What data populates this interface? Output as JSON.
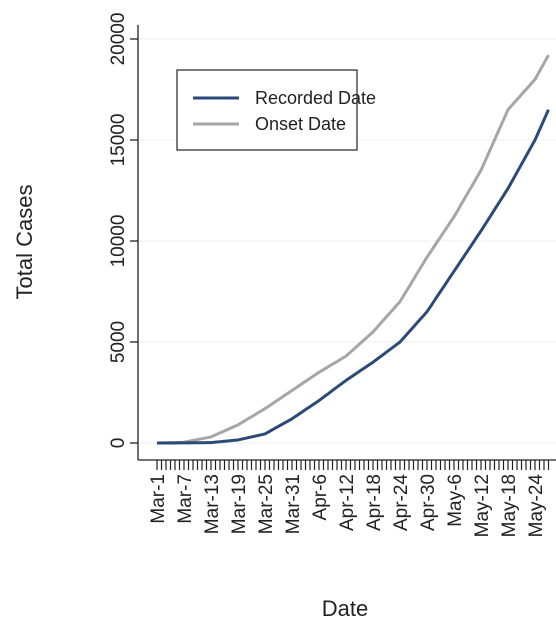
{
  "chart_data": {
    "type": "line",
    "xlabel": "Date",
    "ylabel": "Total Cases",
    "categories": [
      "Mar-1",
      null,
      null,
      null,
      null,
      null,
      "Mar-7",
      null,
      null,
      null,
      null,
      null,
      "Mar-13",
      null,
      null,
      null,
      null,
      null,
      "Mar-19",
      null,
      null,
      null,
      null,
      null,
      "Mar-25",
      null,
      null,
      null,
      null,
      null,
      "Mar-31",
      null,
      null,
      null,
      null,
      null,
      "Apr-6",
      null,
      null,
      null,
      null,
      null,
      "Apr-12",
      null,
      null,
      null,
      null,
      null,
      "Apr-18",
      null,
      null,
      null,
      null,
      null,
      "Apr-24",
      null,
      null,
      null,
      null,
      null,
      "Apr-30",
      null,
      null,
      null,
      null,
      null,
      "May-6",
      null,
      null,
      null,
      null,
      null,
      "May-12",
      null,
      null,
      null,
      null,
      null,
      "May-18",
      null,
      null,
      null,
      null,
      null,
      "May-24",
      null,
      null,
      null
    ],
    "series": [
      {
        "name": "Recorded Date",
        "color": "#2b4a78",
        "values": [
          0,
          1,
          2,
          2,
          3,
          4,
          5,
          8,
          10,
          12,
          15,
          18,
          20,
          42,
          63,
          85,
          107,
          128,
          150,
          200,
          250,
          300,
          350,
          400,
          450,
          575,
          700,
          825,
          950,
          1075,
          1200,
          1350,
          1500,
          1650,
          1800,
          1950,
          2100,
          2270,
          2430,
          2600,
          2770,
          2930,
          3100,
          3250,
          3400,
          3550,
          3700,
          3850,
          4000,
          4170,
          4330,
          4500,
          4670,
          4830,
          5000,
          5250,
          5500,
          5750,
          6000,
          6250,
          6500,
          6830,
          7170,
          7500,
          7830,
          8170,
          8500,
          8830,
          9170,
          9500,
          9830,
          10170,
          10500,
          10850,
          11200,
          11550,
          11900,
          12250,
          12600,
          13000,
          13400,
          13800,
          14200,
          14600,
          15000,
          15500,
          16000,
          16500
        ]
      },
      {
        "name": "Onset Date",
        "color": "#a6a6a6",
        "values": [
          0,
          7,
          13,
          20,
          27,
          33,
          40,
          83,
          127,
          170,
          213,
          257,
          300,
          400,
          500,
          600,
          700,
          800,
          900,
          1030,
          1170,
          1300,
          1430,
          1570,
          1700,
          1850,
          2000,
          2150,
          2300,
          2450,
          2600,
          2750,
          2900,
          3050,
          3200,
          3350,
          3500,
          3630,
          3770,
          3900,
          4030,
          4170,
          4300,
          4500,
          4700,
          4900,
          5100,
          5300,
          5500,
          5750,
          6000,
          6250,
          6500,
          6750,
          7000,
          7370,
          7730,
          8100,
          8470,
          8830,
          9200,
          9530,
          9870,
          10200,
          10530,
          10870,
          11200,
          11580,
          11970,
          12350,
          12730,
          13120,
          13500,
          14000,
          14500,
          15000,
          15500,
          16000,
          16500,
          16750,
          17000,
          17250,
          17500,
          17750,
          18000,
          18400,
          18800,
          19200
        ]
      }
    ],
    "ylim": [
      0,
      20000
    ],
    "yticks": [
      0,
      5000,
      10000,
      15000,
      20000
    ],
    "grid": true,
    "legend": "upper left"
  }
}
